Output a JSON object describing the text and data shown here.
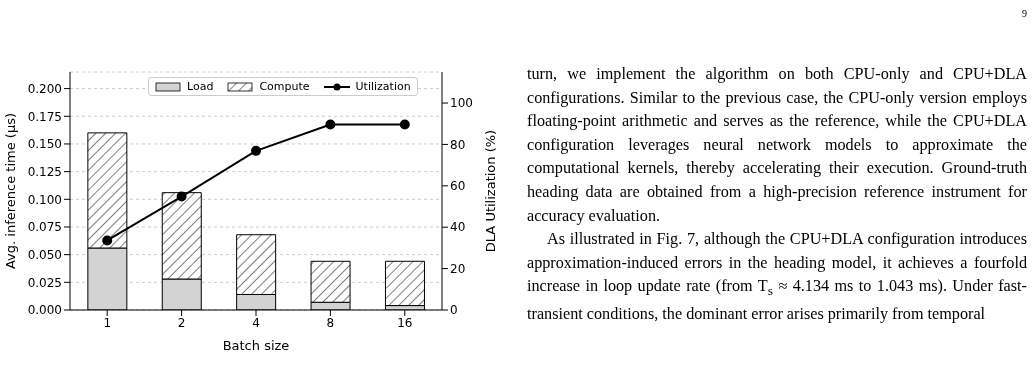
{
  "chart_data": {
    "type": "bar",
    "stacked": true,
    "categories": [
      "1",
      "2",
      "4",
      "8",
      "16"
    ],
    "xlabel": "Batch size",
    "ylabel": "Avg. inference time (µs)",
    "y2label": "DLA Utilization (%)",
    "series": [
      {
        "name": "Load",
        "color": "#d3d3d3",
        "values": [
          0.056,
          0.028,
          0.014,
          0.007,
          0.004
        ]
      },
      {
        "name": "Compute",
        "color": "#000000",
        "values": [
          0.104,
          0.078,
          0.054,
          0.037,
          0.04
        ]
      },
      {
        "name": "Utilization",
        "type": "line",
        "axis": "y2",
        "color": "#000000",
        "marker": "circle",
        "values": [
          33.6,
          54.8,
          76.9,
          89.6,
          89.6
        ]
      }
    ],
    "ylim": [
      0,
      0.215
    ],
    "yticks": [
      {
        "value": 0,
        "label": "0.000"
      },
      {
        "value": 0.025,
        "label": "0.025"
      },
      {
        "value": 0.05,
        "label": "0.050"
      },
      {
        "value": 0.075,
        "label": "0.075"
      },
      {
        "value": 0.1,
        "label": "0.100"
      },
      {
        "value": 0.125,
        "label": "0.125"
      },
      {
        "value": 0.15,
        "label": "0.150"
      },
      {
        "value": 0.175,
        "label": "0.175"
      },
      {
        "value": 0.2,
        "label": "0.200"
      }
    ],
    "y2lim": [
      0,
      115
    ],
    "y2ticks": [
      0,
      20,
      40,
      60,
      80,
      100
    ],
    "grid": "y",
    "legend": "top",
    "annotations": [
      "9",
      "turn, we implement the algorithm on both CPU-only and CPU+DLA configurations. Similar to the previous case, the CPU-only version employs floating-point arithmetic and serves as the reference, while the CPU+DLA configuration leverages neural network models to approximate the computational kernels, thereby accelerating their execution. Ground-truth heading data are obtained from a high-precision reference instrument for accuracy evaluation.",
      "As illustrated in Fig. 7, although the CPU+DLA configuration introduces approximation-induced errors in the heading model, it achieves a fourfold increase in loop update rate (from T$_{s}$ ≈ 4.134 ms to 1.043 ms). Under fast-transient conditions, the dominant error arises primarily from temporal"
    ]
  }
}
